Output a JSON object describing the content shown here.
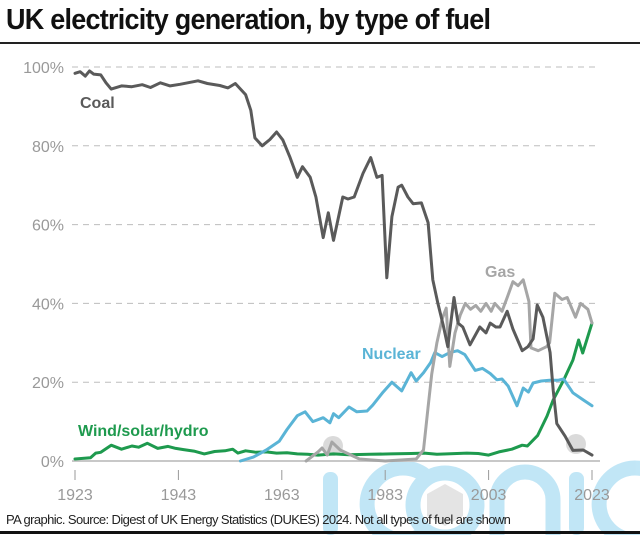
{
  "title": "UK electricity generation, by type of fuel",
  "footer": "PA graphic. Source: Digest of UK Energy Statistics (DUKES) 2024. Not all types of fuel are shown",
  "watermark": "iconic",
  "chart_data": {
    "type": "line",
    "title": "UK electricity generation, by type of fuel",
    "xlabel": "",
    "ylabel": "",
    "xlim": [
      1923,
      2023
    ],
    "ylim": [
      0,
      100
    ],
    "grid": true,
    "x_ticks": [
      1923,
      1943,
      1963,
      1983,
      2003,
      2023
    ],
    "x_tick_labels": [
      "1923",
      "1943",
      "1963",
      "1983",
      "2003",
      "2023"
    ],
    "y_ticks": [
      0,
      20,
      40,
      60,
      80,
      100
    ],
    "y_tick_labels": [
      "0%",
      "20%",
      "40%",
      "60%",
      "80%",
      "100%"
    ],
    "legend": "inline-labels",
    "series": [
      {
        "name": "Coal",
        "color": "#5a5a5a",
        "points": [
          [
            1923,
            98.4
          ],
          [
            1924,
            98.8
          ],
          [
            1925,
            97.7
          ],
          [
            1925.8,
            99
          ],
          [
            1926.6,
            98.2
          ],
          [
            1928,
            98
          ],
          [
            1929,
            96
          ],
          [
            1930,
            94.4
          ],
          [
            1932,
            95.2
          ],
          [
            1934,
            95
          ],
          [
            1936,
            95.5
          ],
          [
            1937.6,
            94.8
          ],
          [
            1939.5,
            96
          ],
          [
            1941.4,
            95.2
          ],
          [
            1943.3,
            95.6
          ],
          [
            1946.8,
            96.5
          ],
          [
            1948.6,
            95.8
          ],
          [
            1951,
            95.3
          ],
          [
            1952.6,
            94.7
          ],
          [
            1954,
            95.8
          ],
          [
            1956,
            93
          ],
          [
            1957,
            89
          ],
          [
            1957.8,
            82
          ],
          [
            1959.2,
            80
          ],
          [
            1960.7,
            81.6
          ],
          [
            1962,
            83.5
          ],
          [
            1963.2,
            81.5
          ],
          [
            1964.6,
            77
          ],
          [
            1966,
            72
          ],
          [
            1967,
            74.7
          ],
          [
            1968.5,
            72
          ],
          [
            1969.6,
            67
          ],
          [
            1971,
            56.7
          ],
          [
            1972,
            63
          ],
          [
            1973,
            56
          ],
          [
            1974.8,
            67
          ],
          [
            1975.8,
            66.5
          ],
          [
            1977,
            67
          ],
          [
            1978.7,
            73
          ],
          [
            1980.2,
            77
          ],
          [
            1981.4,
            72
          ],
          [
            1982.4,
            72.5
          ],
          [
            1983.3,
            46.5
          ],
          [
            1984.3,
            62
          ],
          [
            1985.5,
            69.5
          ],
          [
            1986.2,
            70
          ],
          [
            1987.4,
            67
          ],
          [
            1988.4,
            65.3
          ],
          [
            1990,
            65.5
          ],
          [
            1991.3,
            60.5
          ],
          [
            1992.2,
            46
          ],
          [
            1993.2,
            40
          ],
          [
            1994.2,
            34.6
          ],
          [
            1995.1,
            29
          ],
          [
            1996.3,
            41.5
          ],
          [
            1997.1,
            35
          ],
          [
            1998,
            34
          ],
          [
            1999.4,
            29.5
          ],
          [
            2001.3,
            34
          ],
          [
            2002.5,
            32.5
          ],
          [
            2003.3,
            35
          ],
          [
            2004.4,
            34
          ],
          [
            2005.2,
            34
          ],
          [
            2006.6,
            38
          ],
          [
            2007.7,
            33.5
          ],
          [
            2009.5,
            28
          ],
          [
            2010.6,
            29
          ],
          [
            2011.6,
            31
          ],
          [
            2012.4,
            39.6
          ],
          [
            2013.5,
            36.5
          ],
          [
            2014.9,
            27.5
          ],
          [
            2015.5,
            18
          ],
          [
            2016.2,
            9.5
          ],
          [
            2017.8,
            6.3
          ],
          [
            2019.3,
            2.7
          ],
          [
            2021.3,
            2.8
          ],
          [
            2023,
            1.5
          ]
        ]
      },
      {
        "name": "Gas",
        "color": "#a6a6a6",
        "points": [
          [
            1967.7,
            0
          ],
          [
            1970,
            2.3
          ],
          [
            1970.8,
            3.3
          ],
          [
            1971.8,
            1.5
          ],
          [
            1972.7,
            4.8
          ],
          [
            1974.3,
            2.8
          ],
          [
            1978,
            0.5
          ],
          [
            1983,
            0
          ],
          [
            1989,
            0.5
          ],
          [
            1990.4,
            2.8
          ],
          [
            1991.3,
            13.7
          ],
          [
            1992,
            22
          ],
          [
            1993,
            30
          ],
          [
            1994,
            36
          ],
          [
            1994.8,
            38.8
          ],
          [
            1995.5,
            24
          ],
          [
            1996.5,
            32.5
          ],
          [
            1997.5,
            37
          ],
          [
            1998.5,
            40
          ],
          [
            1999.5,
            38.5
          ],
          [
            2000.5,
            39.5
          ],
          [
            2001.5,
            38
          ],
          [
            2002.5,
            40
          ],
          [
            2003.5,
            38
          ],
          [
            2004.2,
            40
          ],
          [
            2005.6,
            38
          ],
          [
            2006.6,
            41.5
          ],
          [
            2007.7,
            45.5
          ],
          [
            2008.7,
            44.5
          ],
          [
            2009.7,
            46
          ],
          [
            2010.8,
            40.5
          ],
          [
            2011.2,
            28.7
          ],
          [
            2012.6,
            28
          ],
          [
            2014.2,
            29
          ],
          [
            2014.8,
            30
          ],
          [
            2015.8,
            42.6
          ],
          [
            2017.2,
            41
          ],
          [
            2018.2,
            41.5
          ],
          [
            2019.8,
            36.5
          ],
          [
            2020.8,
            40
          ],
          [
            2022.2,
            38.5
          ],
          [
            2023,
            35
          ]
        ]
      },
      {
        "name": "Nuclear",
        "color": "#5ab4d6",
        "points": [
          [
            1955,
            0
          ],
          [
            1957.5,
            1
          ],
          [
            1960,
            2.8
          ],
          [
            1962.5,
            5
          ],
          [
            1964,
            8
          ],
          [
            1966,
            11.5
          ],
          [
            1967.5,
            12.5
          ],
          [
            1969,
            10
          ],
          [
            1971,
            11
          ],
          [
            1972.3,
            9.7
          ],
          [
            1973,
            12
          ],
          [
            1974,
            11
          ],
          [
            1976,
            13.7
          ],
          [
            1977.5,
            12.5
          ],
          [
            1979.5,
            12.7
          ],
          [
            1980.6,
            14.2
          ],
          [
            1982.6,
            17.5
          ],
          [
            1984.3,
            20
          ],
          [
            1986.2,
            17.8
          ],
          [
            1988,
            22.4
          ],
          [
            1989,
            20.3
          ],
          [
            1990.4,
            22.4
          ],
          [
            1991.8,
            25
          ],
          [
            1992.6,
            27.5
          ],
          [
            1994,
            26.5
          ],
          [
            1995.5,
            27.5
          ],
          [
            1997,
            28
          ],
          [
            1998.4,
            27
          ],
          [
            2000.4,
            23
          ],
          [
            2001.8,
            23.5
          ],
          [
            2003.3,
            22.2
          ],
          [
            2004.6,
            20.6
          ],
          [
            2005.6,
            20.8
          ],
          [
            2006.8,
            19
          ],
          [
            2008.5,
            14
          ],
          [
            2009.7,
            18.5
          ],
          [
            2010.7,
            17.5
          ],
          [
            2011.6,
            19.8
          ],
          [
            2013.2,
            20.3
          ],
          [
            2014.8,
            20.5
          ],
          [
            2016.5,
            20.5
          ],
          [
            2017.5,
            20.8
          ],
          [
            2019.3,
            17.3
          ],
          [
            2021.3,
            15.5
          ],
          [
            2023,
            14
          ]
        ]
      },
      {
        "name": "Wind/solar/hydro",
        "color": "#1e9a4e",
        "points": [
          [
            1923,
            0.5
          ],
          [
            1926,
            0.8
          ],
          [
            1927,
            2
          ],
          [
            1928,
            2.2
          ],
          [
            1930,
            4
          ],
          [
            1932,
            3
          ],
          [
            1934,
            3.8
          ],
          [
            1935.3,
            3.5
          ],
          [
            1937,
            4.5
          ],
          [
            1939,
            3.2
          ],
          [
            1941,
            3.7
          ],
          [
            1942.5,
            3.2
          ],
          [
            1944,
            2.9
          ],
          [
            1946,
            2.5
          ],
          [
            1948,
            1.8
          ],
          [
            1950,
            2.4
          ],
          [
            1952,
            2.6
          ],
          [
            1953.5,
            3
          ],
          [
            1954.5,
            2
          ],
          [
            1956,
            2.6
          ],
          [
            1958,
            2.2
          ],
          [
            1960,
            2.3
          ],
          [
            1962,
            2
          ],
          [
            1964,
            2.1
          ],
          [
            1966,
            1.8
          ],
          [
            1968,
            1.7
          ],
          [
            1970,
            1.5
          ],
          [
            1973,
            1.8
          ],
          [
            1976,
            1.6
          ],
          [
            1980,
            1.7
          ],
          [
            1984,
            1.8
          ],
          [
            1988,
            1.9
          ],
          [
            1990.6,
            2
          ],
          [
            1993,
            1.7
          ],
          [
            1995,
            1.8
          ],
          [
            1998.8,
            2
          ],
          [
            2001,
            1.9
          ],
          [
            2003,
            1.5
          ],
          [
            2005,
            2.3
          ],
          [
            2007.5,
            3
          ],
          [
            2009.5,
            4
          ],
          [
            2010.5,
            3.8
          ],
          [
            2012.5,
            6.5
          ],
          [
            2014.3,
            11.4
          ],
          [
            2015.5,
            15.5
          ],
          [
            2017.5,
            20.5
          ],
          [
            2019.3,
            25.6
          ],
          [
            2020.4,
            30.7
          ],
          [
            2021.2,
            27.4
          ],
          [
            2023,
            35
          ]
        ]
      }
    ],
    "annotations": [
      {
        "text": "Coal",
        "series": "Coal"
      },
      {
        "text": "Gas",
        "series": "Gas"
      },
      {
        "text": "Nuclear",
        "series": "Nuclear"
      },
      {
        "text": "Wind/solar/hydro",
        "series": "Wind/solar/hydro"
      }
    ]
  }
}
